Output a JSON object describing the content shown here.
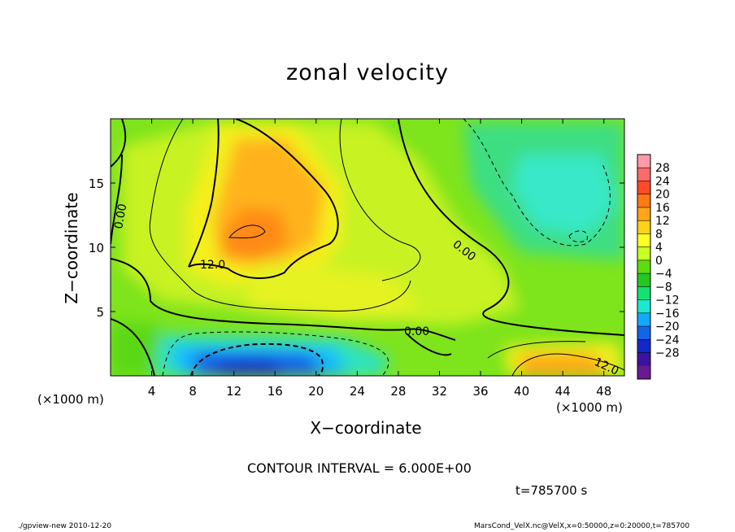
{
  "chart_data": {
    "type": "heatmap",
    "title": "zonal velocity",
    "xlabel": "X−coordinate",
    "ylabel": "Z−coordinate",
    "x_unit_label": "(×1000 m)",
    "xlim": [
      0,
      50
    ],
    "ylim": [
      0,
      20
    ],
    "x_ticks": [
      "4",
      "8",
      "12",
      "16",
      "20",
      "24",
      "28",
      "32",
      "36",
      "40",
      "44",
      "48"
    ],
    "y_ticks": [
      "5",
      "10",
      "15"
    ],
    "contour_interval_text": "CONTOUR INTERVAL = 6.000E+00",
    "time_text": "t=785700 s",
    "contour_labels": [
      "0.00",
      "12.0",
      "0.00",
      "0.00",
      "12.0"
    ],
    "colorbar": {
      "labels": [
        "28",
        "24",
        "20",
        "16",
        "12",
        "8",
        "4",
        "0",
        "−4",
        "−8",
        "−12",
        "−16",
        "−20",
        "−24",
        "−28"
      ],
      "colors": [
        "#ff9aa8",
        "#ff6a6a",
        "#ff4a2a",
        "#ff7a12",
        "#ffa516",
        "#ffd21a",
        "#ffff24",
        "#c6ff22",
        "#5edc10",
        "#24c81e",
        "#16e070",
        "#1ce8d0",
        "#14a8ff",
        "#1464e8",
        "#1428c8",
        "#3a14a0",
        "#6a1a90"
      ]
    },
    "footer_left": "./gpview-new  2010-12-20",
    "footer_right": "MarsCond_VelX.nc@VelX,x=0:50000,z=0:20000,t=785700"
  }
}
